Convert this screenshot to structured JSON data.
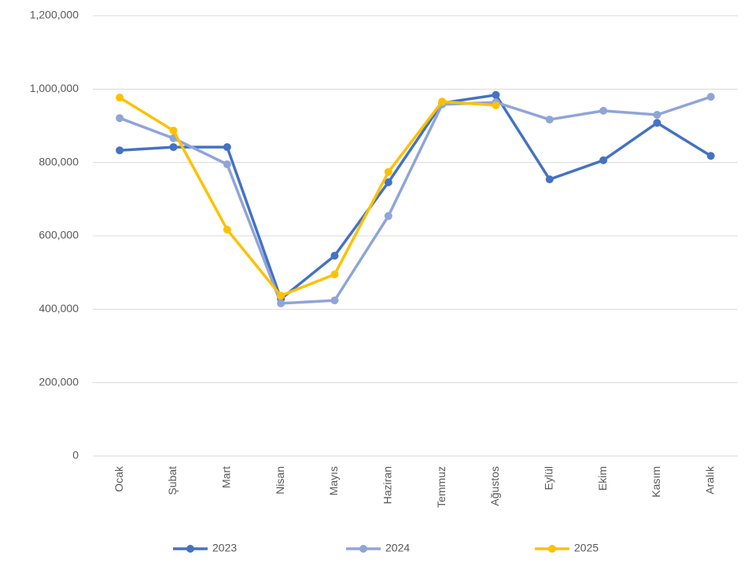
{
  "chart_data": {
    "type": "line",
    "categories": [
      "Ocak",
      "Şubat",
      "Mart",
      "Nisan",
      "Mayıs",
      "Haziran",
      "Temmuz",
      "Ağustos",
      "Eylül",
      "Ekim",
      "Kasım",
      "Aralık"
    ],
    "series": [
      {
        "name": "2023",
        "color": "#4472c4",
        "values": [
          833000,
          842000,
          842000,
          428000,
          546000,
          746000,
          962000,
          984000,
          754000,
          806000,
          908000,
          818000
        ]
      },
      {
        "name": "2024",
        "color": "#8fa5d8",
        "values": [
          921000,
          866000,
          795000,
          416000,
          424000,
          654000,
          958000,
          964000,
          917000,
          941000,
          930000,
          979000
        ]
      },
      {
        "name": "2025",
        "color": "#ffc000",
        "values": [
          977000,
          887000,
          617000,
          437000,
          495000,
          774000,
          966000,
          956000,
          null,
          null,
          null,
          null
        ]
      }
    ],
    "ylim": [
      0,
      1200000
    ],
    "yticks": [
      0,
      {
        "value": 200000,
        "label": "200,000"
      },
      {
        "value": 400000,
        "label": "400,000"
      },
      {
        "value": 600000,
        "label": "600,000"
      },
      {
        "value": 800000,
        "label": "800,000"
      },
      {
        "value": 1000000,
        "label": "1,000,000"
      },
      {
        "value": 1200000,
        "label": "1,200,000"
      }
    ],
    "grid": true,
    "legend": "bottom"
  }
}
